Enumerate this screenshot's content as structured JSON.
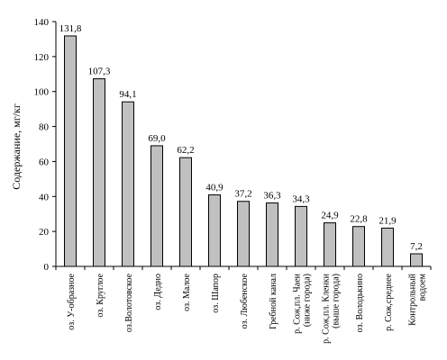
{
  "chart_data": {
    "type": "bar",
    "title": "",
    "xlabel": "",
    "ylabel": "Содержание, мг/кг",
    "ylim": [
      0,
      140
    ],
    "ytick_step": 20,
    "yticks": [
      "0",
      "20",
      "40",
      "60",
      "80",
      "100",
      "120",
      "140"
    ],
    "grid": false,
    "legend": "none",
    "bar_color": "#c0c0c0",
    "categories": [
      [
        "оз. У-образное"
      ],
      [
        "оз. Круглое"
      ],
      [
        "оз.Волотовское"
      ],
      [
        "оз. Дедно"
      ],
      [
        "оз. Малое"
      ],
      [
        "оз. Шапор"
      ],
      [
        "оз. Любенское"
      ],
      [
        "Гребной канал"
      ],
      [
        "р. Сож,пл. Чаеи",
        "(ниже города)"
      ],
      [
        "р. Сож,пл. Кленки",
        "(выше города)"
      ],
      [
        "оз. Володькино"
      ],
      [
        "р. Сож,среднее"
      ],
      [
        "Контрольный",
        "водоем"
      ]
    ],
    "values": [
      131.8,
      107.3,
      94.1,
      69.0,
      62.2,
      40.9,
      37.2,
      36.3,
      34.3,
      24.9,
      22.8,
      21.9,
      7.2
    ],
    "value_labels": [
      "131,8",
      "107,3",
      "94,1",
      "69,0",
      "62,2",
      "40,9",
      "37,2",
      "36,3",
      "34,3",
      "24,9",
      "22,8",
      "21,9",
      "7,2"
    ]
  }
}
